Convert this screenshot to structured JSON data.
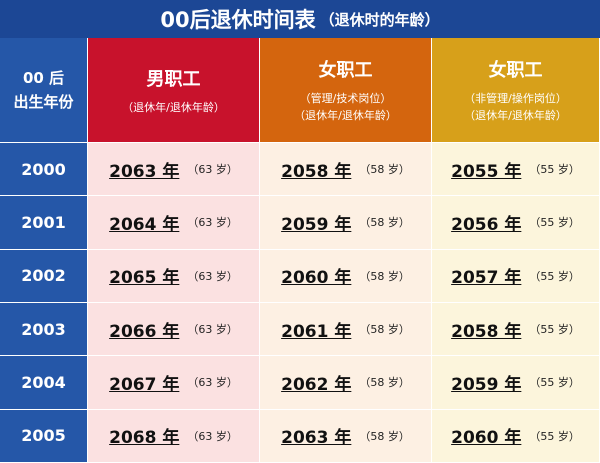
{
  "title": "00后退休时间表",
  "subtitle": "（退休时的年龄）",
  "header": {
    "first": [
      "00 后",
      "出生年份"
    ],
    "columns": [
      {
        "label": "男职工",
        "notes": [
          "（退休年/退休年龄）"
        ]
      },
      {
        "label": "女职工",
        "notes": [
          "（管理/技术岗位）",
          "（退休年/退休年龄）"
        ]
      },
      {
        "label": "女职工",
        "notes": [
          "（非管理/操作岗位）",
          "（退休年/退休年龄）"
        ]
      }
    ]
  },
  "rows": [
    {
      "year": "2000",
      "cells": [
        {
          "retire": "2063 年",
          "age": "（63 岁）"
        },
        {
          "retire": "2058 年",
          "age": "（58 岁）"
        },
        {
          "retire": "2055 年",
          "age": "（55 岁）"
        }
      ]
    },
    {
      "year": "2001",
      "cells": [
        {
          "retire": "2064 年",
          "age": "（63 岁）"
        },
        {
          "retire": "2059 年",
          "age": "（58 岁）"
        },
        {
          "retire": "2056 年",
          "age": "（55 岁）"
        }
      ]
    },
    {
      "year": "2002",
      "cells": [
        {
          "retire": "2065 年",
          "age": "（63 岁）"
        },
        {
          "retire": "2060 年",
          "age": "（58 岁）"
        },
        {
          "retire": "2057 年",
          "age": "（55 岁）"
        }
      ]
    },
    {
      "year": "2003",
      "cells": [
        {
          "retire": "2066 年",
          "age": "（63 岁）"
        },
        {
          "retire": "2061 年",
          "age": "（58 岁）"
        },
        {
          "retire": "2058 年",
          "age": "（55 岁）"
        }
      ]
    },
    {
      "year": "2004",
      "cells": [
        {
          "retire": "2067 年",
          "age": "（63 岁）"
        },
        {
          "retire": "2062 年",
          "age": "（58 岁）"
        },
        {
          "retire": "2059 年",
          "age": "（55 岁）"
        }
      ]
    },
    {
      "year": "2005",
      "cells": [
        {
          "retire": "2068 年",
          "age": "（63 岁）"
        },
        {
          "retire": "2063 年",
          "age": "（58 岁）"
        },
        {
          "retire": "2060 年",
          "age": "（55 岁）"
        }
      ]
    }
  ]
}
